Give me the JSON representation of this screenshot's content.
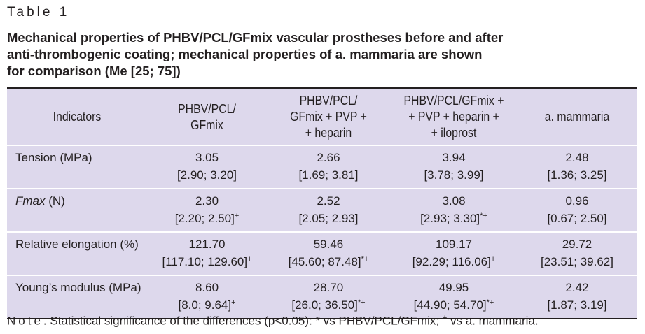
{
  "table_label": "Table 1",
  "caption": {
    "line1": "Mechanical properties of PHBV/PCL/GFmix vascular prostheses before and after",
    "line2": "anti-thrombogenic coating; mechanical properties of a. mammaria are shown",
    "line3": "for comparison (Me [25; 75])"
  },
  "headers": {
    "indicators": "Indicators",
    "col1": [
      "PHBV/PCL/",
      "GFmix"
    ],
    "col2": [
      "PHBV/PCL/",
      "GFmix + PVP +",
      "+ heparin"
    ],
    "col3": [
      "PHBV/PCL/GFmix +",
      "+ PVP + heparin +",
      "+ iloprost"
    ],
    "col4": [
      "a. mammaria"
    ]
  },
  "rows": [
    {
      "indicator": "Tension (MPa)",
      "italic_part": "",
      "cells": [
        {
          "value": "3.05",
          "ci": "[2.90; 3.20]",
          "sup": ""
        },
        {
          "value": "2.66",
          "ci": "[1.69; 3.81]",
          "sup": ""
        },
        {
          "value": "3.94",
          "ci": "[3.78; 3.99]",
          "sup": ""
        },
        {
          "value": "2.48",
          "ci": "[1.36; 3.25]",
          "sup": ""
        }
      ]
    },
    {
      "indicator": " (N)",
      "italic_part": "Fmax",
      "cells": [
        {
          "value": "2.30",
          "ci": "[2.20; 2.50]",
          "sup": "+"
        },
        {
          "value": "2.52",
          "ci": "[2.05; 2.93]",
          "sup": ""
        },
        {
          "value": "3.08",
          "ci": "[2.93; 3.30]",
          "sup": "*+"
        },
        {
          "value": "0.96",
          "ci": "[0.67; 2.50]",
          "sup": ""
        }
      ]
    },
    {
      "indicator": "Relative elongation (%)",
      "italic_part": "",
      "cells": [
        {
          "value": "121.70",
          "ci": "[117.10; 129.60]",
          "sup": "+"
        },
        {
          "value": "59.46",
          "ci": "[45.60; 87.48]",
          "sup": "*+"
        },
        {
          "value": "109.17",
          "ci": "[92.29; 116.06]",
          "sup": "+"
        },
        {
          "value": "29.72",
          "ci": "[23.51; 39.62]",
          "sup": ""
        }
      ]
    },
    {
      "indicator": "Young’s modulus (MPa)",
      "italic_part": "",
      "cells": [
        {
          "value": "8.60",
          "ci": "[8.0; 9.64]",
          "sup": "+"
        },
        {
          "value": "28.70",
          "ci": "[26.0; 36.50]",
          "sup": "*+"
        },
        {
          "value": "49.95",
          "ci": "[44.90; 54.70]",
          "sup": "*+"
        },
        {
          "value": "2.42",
          "ci": "[1.87; 3.19]",
          "sup": ""
        }
      ]
    }
  ],
  "note": {
    "label": "Note",
    "text_a": ". Statistical significance of the differences (p<0.05): * vs PHBV/PCL/GFmix; ",
    "sup": "+",
    "text_b": " vs a. mammaria."
  },
  "colors": {
    "table_bg": "#ddd8ec",
    "text": "#231f20",
    "row_separator": "#ffffff"
  }
}
